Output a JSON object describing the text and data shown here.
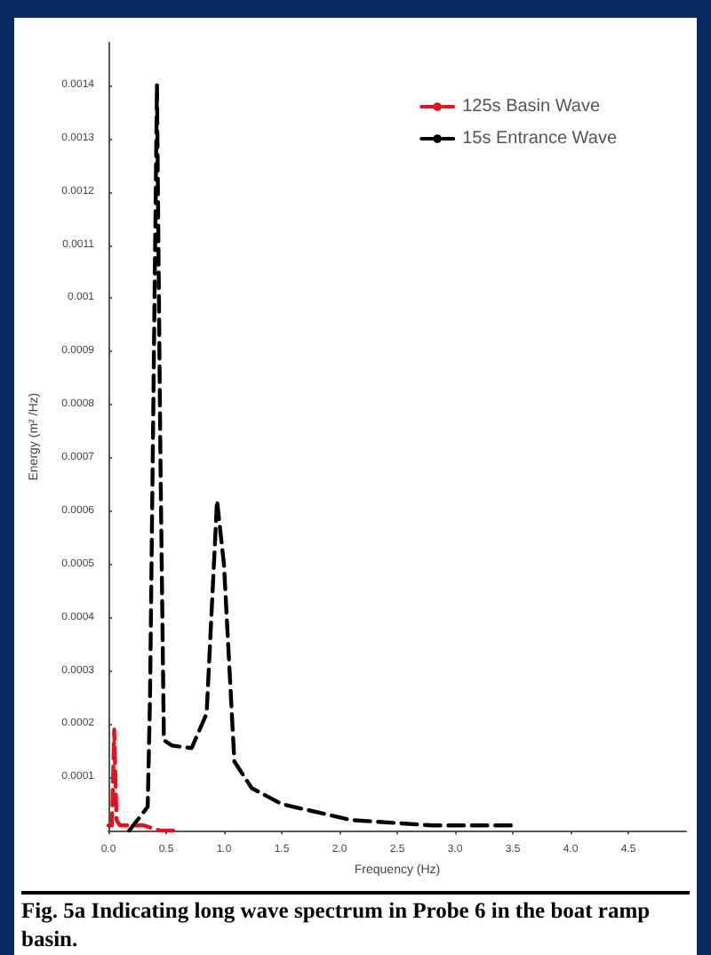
{
  "chart_data": {
    "type": "line",
    "xlabel": "Frequency (Hz)",
    "ylabel": "Energy (m² /Hz)",
    "annotations": [
      "Fig. 5a    Indicating long wave spectrum in Probe 6 in the boat ramp basin."
    ],
    "xlim": [
      0,
      5
    ],
    "xticks": [
      {
        "value": 0,
        "label": "0.0"
      },
      0.5,
      {
        "value": 1,
        "label": "1.0"
      },
      1.5,
      {
        "value": 2,
        "label": "2.0"
      },
      2.5,
      {
        "value": 3,
        "label": "3.0"
      },
      3.5,
      {
        "value": 4,
        "label": "4.0"
      },
      4.5
    ],
    "ylim": [
      0,
      0.00148
    ],
    "yticks": [
      0.0001,
      0.0002,
      0.0003,
      0.0004,
      0.0005,
      0.0006,
      0.0007,
      0.0008,
      0.0009,
      0.001,
      0.0011,
      0.0012,
      0.0013,
      0.0014
    ],
    "grid": false,
    "legend": "top right",
    "marker": "none",
    "line_style": "dashed",
    "series": [
      {
        "name": "125s Basin Wave",
        "color": "#e0141e",
        "x": [
          0,
          0.03,
          0.05,
          0.07,
          0.1,
          0.15,
          0.25,
          0.3,
          0.45,
          0.6
        ],
        "values": [
          1e-05,
          1e-05,
          0.00019,
          2e-05,
          1e-05,
          1e-05,
          1e-05,
          1e-05,
          0,
          0
        ]
      },
      {
        "name": "15s Entrance Wave",
        "color": "#000000",
        "x": [
          0.18,
          0.34,
          0.36,
          0.42,
          0.45,
          0.48,
          0.55,
          0.72,
          0.85,
          0.94,
          1.0,
          1.09,
          1.24,
          1.5,
          2.1,
          2.8,
          3.5
        ],
        "values": [
          0,
          4.5e-05,
          0.00025,
          0.0014,
          0.0007,
          0.00017,
          0.00016,
          0.000155,
          0.00022,
          0.00062,
          0.0005,
          0.00013,
          8e-05,
          5e-05,
          2e-05,
          1e-05,
          1e-05
        ]
      }
    ]
  }
}
